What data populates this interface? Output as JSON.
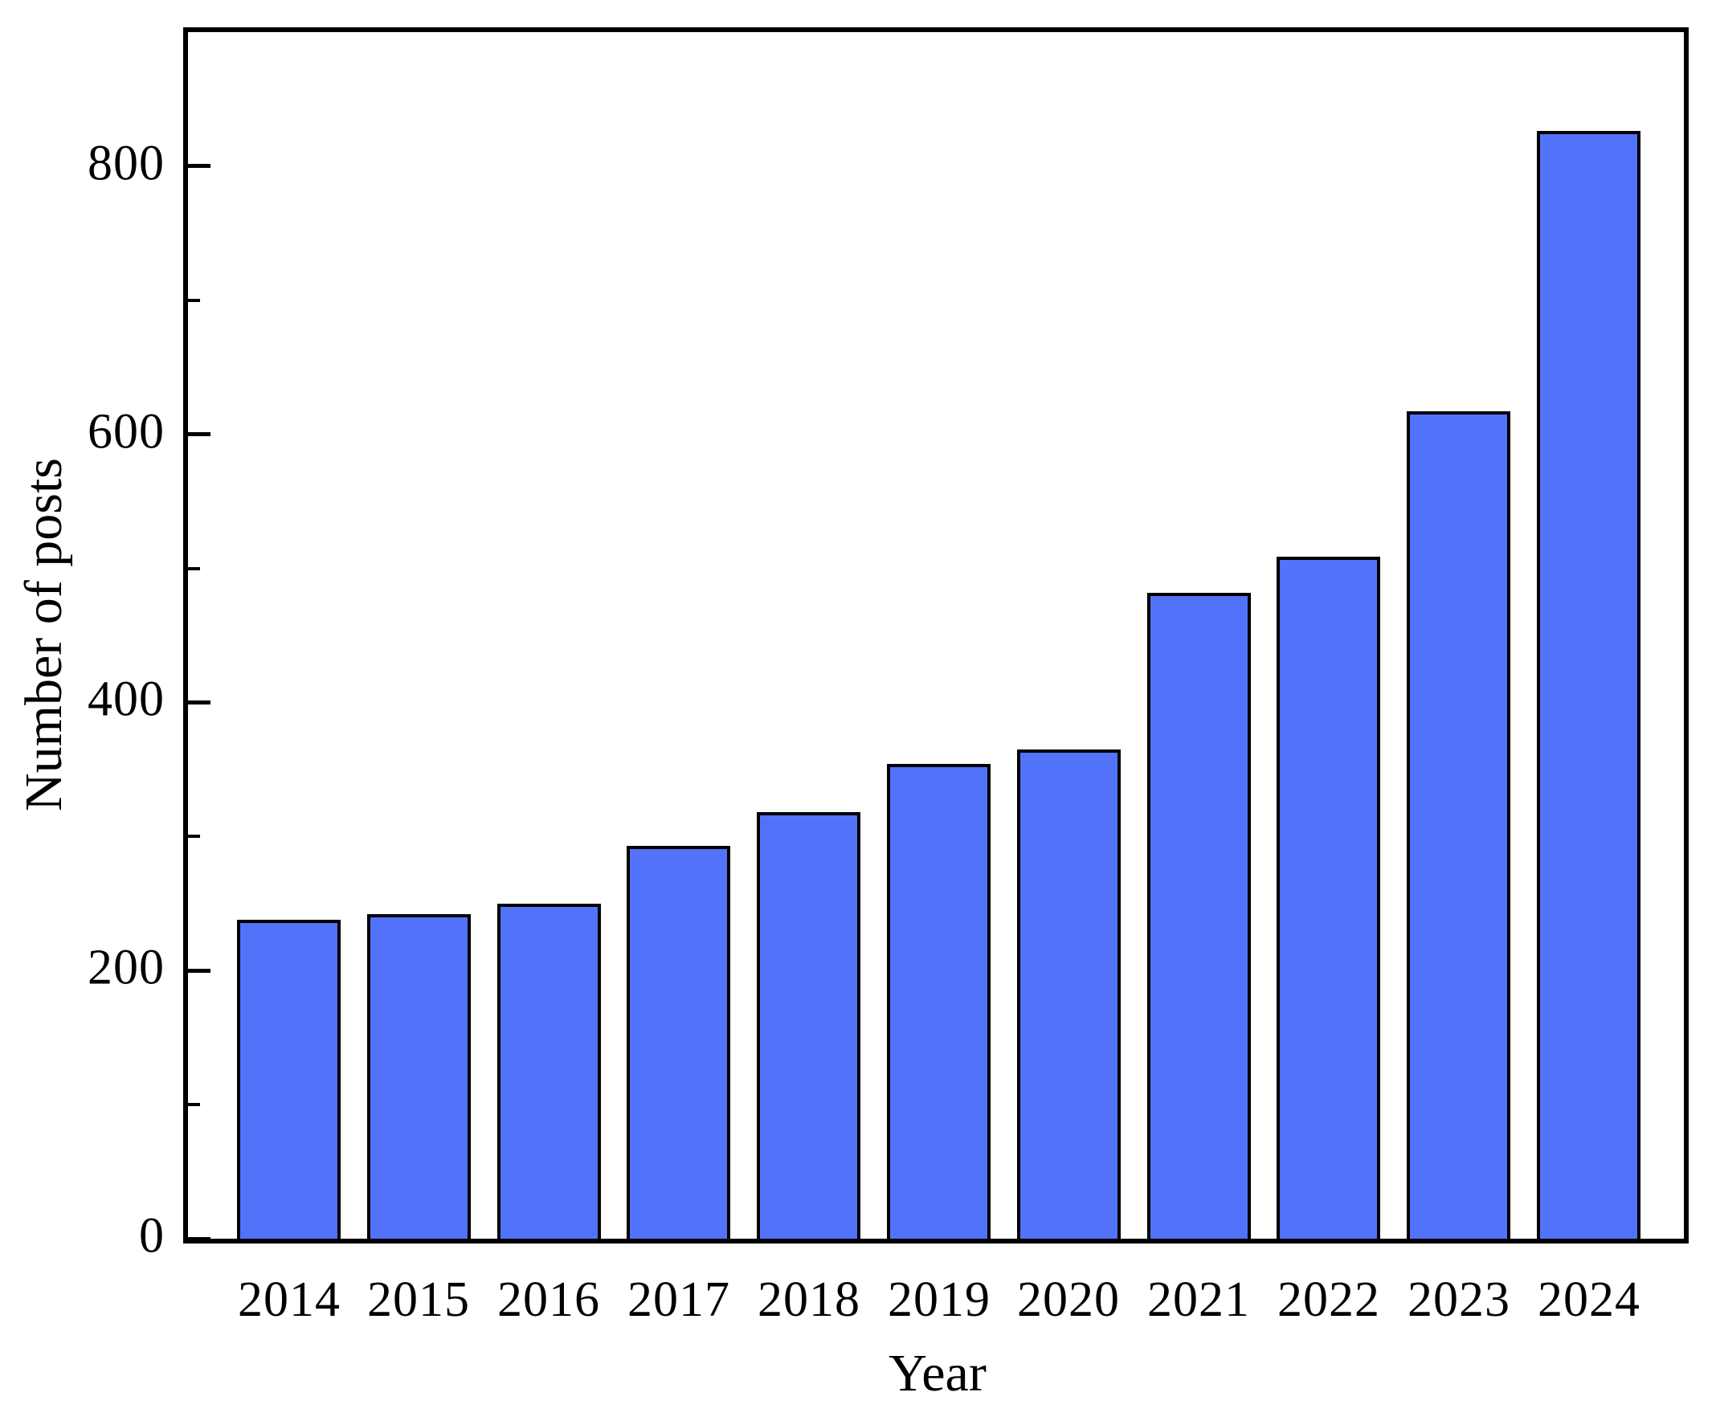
{
  "chart_data": {
    "type": "bar",
    "title": "",
    "xlabel": "Year",
    "ylabel": "Number of posts",
    "categories": [
      "2014",
      "2015",
      "2016",
      "2017",
      "2018",
      "2019",
      "2020",
      "2021",
      "2022",
      "2023",
      "2024"
    ],
    "values": [
      238,
      242,
      250,
      293,
      318,
      354,
      365,
      482,
      509,
      617,
      826
    ],
    "ylim": [
      0,
      900
    ],
    "yticks_major": [
      0,
      200,
      400,
      600,
      800
    ],
    "yticks_minor": [
      100,
      300,
      500,
      700
    ],
    "ytick_labels": [
      "0",
      "200",
      "400",
      "600",
      "800"
    ],
    "grid": false,
    "legend": null,
    "colors": {
      "bar_fill": "#5272fa",
      "bar_edge": "#000000",
      "frame": "#000000",
      "background": "#ffffff"
    }
  }
}
